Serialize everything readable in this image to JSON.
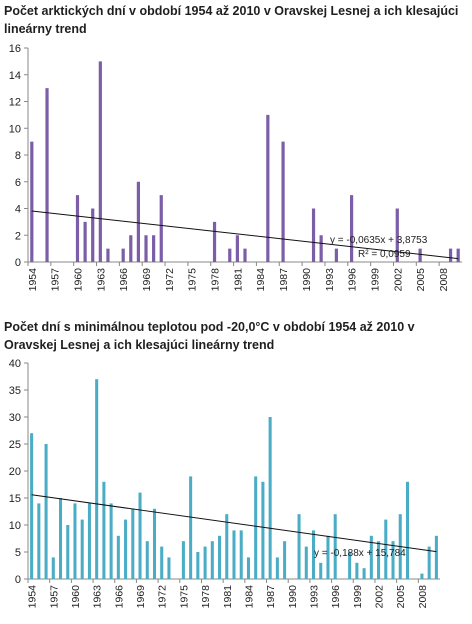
{
  "chart_data": [
    {
      "type": "bar",
      "title": "Počet arktických dní v období 1954  až 2010  v Oravskej Lesnej a ich klesajúci lineárny trend",
      "x": [
        1954,
        1955,
        1956,
        1957,
        1958,
        1959,
        1960,
        1961,
        1962,
        1963,
        1964,
        1965,
        1966,
        1967,
        1968,
        1969,
        1970,
        1971,
        1972,
        1973,
        1974,
        1975,
        1976,
        1977,
        1978,
        1979,
        1980,
        1981,
        1982,
        1983,
        1984,
        1985,
        1986,
        1987,
        1988,
        1989,
        1990,
        1991,
        1992,
        1993,
        1994,
        1995,
        1996,
        1997,
        1998,
        1999,
        2000,
        2001,
        2002,
        2003,
        2004,
        2005,
        2006,
        2007,
        2008,
        2009,
        2010
      ],
      "values": [
        9,
        0,
        13,
        0,
        0,
        0,
        5,
        3,
        4,
        15,
        1,
        0,
        1,
        2,
        6,
        2,
        2,
        5,
        0,
        0,
        0,
        0,
        0,
        0,
        3,
        0,
        1,
        2,
        1,
        0,
        0,
        11,
        0,
        9,
        0,
        0,
        0,
        4,
        2,
        0,
        1,
        0,
        5,
        0,
        0,
        0,
        0,
        0,
        4,
        0,
        0,
        1,
        0,
        0,
        0,
        1,
        1
      ],
      "xticks": [
        "1954",
        "1957",
        "1960",
        "1963",
        "1966",
        "1969",
        "1972",
        "1975",
        "1978",
        "1981",
        "1984",
        "1987",
        "1990",
        "1993",
        "1996",
        "1999",
        "2002",
        "2005",
        "2008"
      ],
      "ylim": [
        0,
        16
      ],
      "yticks": [
        "0",
        "2",
        "4",
        "6",
        "8",
        "10",
        "12",
        "14",
        "16"
      ],
      "bar_color": "#7b5ea7",
      "trend": {
        "slope": -0.0635,
        "intercept": 3.8753
      },
      "trend_label": "y = -0,0635x + 3,8753",
      "r2_label": "R² = 0,0959",
      "grid": true
    },
    {
      "type": "bar",
      "title": "Počet dní s minimálnou teplotou pod -20,0°C v období 1954  až 2010 v Oravskej Lesnej a ich klesajúci lineárny trend",
      "x": [
        1954,
        1955,
        1956,
        1957,
        1958,
        1959,
        1960,
        1961,
        1962,
        1963,
        1964,
        1965,
        1966,
        1967,
        1968,
        1969,
        1970,
        1971,
        1972,
        1973,
        1974,
        1975,
        1976,
        1977,
        1978,
        1979,
        1980,
        1981,
        1982,
        1983,
        1984,
        1985,
        1986,
        1987,
        1988,
        1989,
        1990,
        1991,
        1992,
        1993,
        1994,
        1995,
        1996,
        1997,
        1998,
        1999,
        2000,
        2001,
        2002,
        2003,
        2004,
        2005,
        2006,
        2007,
        2008,
        2009,
        2010
      ],
      "values": [
        27,
        14,
        25,
        4,
        15,
        10,
        14,
        11,
        14,
        37,
        18,
        14,
        8,
        11,
        13,
        16,
        7,
        13,
        6,
        4,
        0,
        7,
        19,
        5,
        6,
        7,
        8,
        12,
        9,
        9,
        4,
        19,
        18,
        30,
        4,
        7,
        0,
        12,
        6,
        9,
        3,
        8,
        12,
        0,
        5,
        3,
        2,
        8,
        7,
        11,
        7,
        12,
        18,
        0,
        1,
        6,
        8
      ],
      "xticks": [
        "1954",
        "1957",
        "1960",
        "1963",
        "1966",
        "1969",
        "1972",
        "1975",
        "1978",
        "1981",
        "1984",
        "1987",
        "1990",
        "1993",
        "1996",
        "1999",
        "2002",
        "2005",
        "2008"
      ],
      "ylim": [
        0,
        40
      ],
      "yticks": [
        "0",
        "5",
        "10",
        "15",
        "20",
        "25",
        "30",
        "35",
        "40"
      ],
      "bar_color": "#4bacc6",
      "trend": {
        "slope": -0.188,
        "intercept": 15.784
      },
      "trend_label": "y = -0,188x + 15,784",
      "grid": true
    }
  ]
}
